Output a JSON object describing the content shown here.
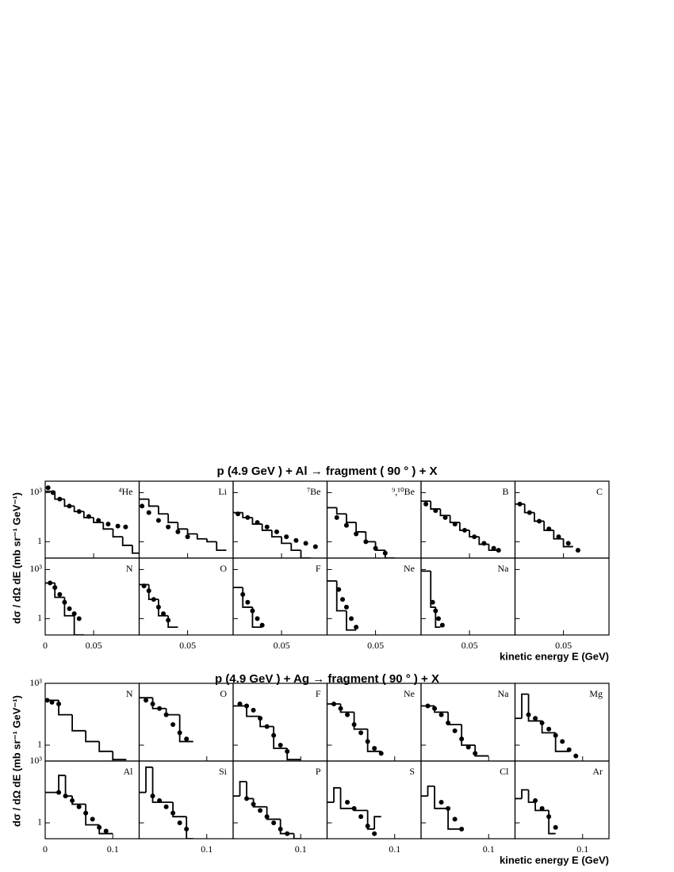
{
  "chart_data": [
    {
      "type": "scatter",
      "title": "p (4.9 GeV ) + Al → fragment ( 90 ° ) + X",
      "y_label": "dσ / dΩ dE (mb sr⁻¹ GeV⁻¹)",
      "x_label": "kinetic energy E (GeV)",
      "log_y": true,
      "color": "#000000",
      "xlim": [
        0,
        0.097
      ],
      "xticks": [
        0,
        0.05
      ],
      "ylim": [
        0.1,
        5000
      ],
      "yticks": [
        1,
        {
          "value": 1000,
          "label": "10³"
        }
      ],
      "panels": [
        {
          "label": "⁴He",
          "points": {
            "x": [
              0.003,
              0.008,
              0.015,
              0.025,
              0.035,
              0.045,
              0.055,
              0.065,
              0.075,
              0.083
            ],
            "y": [
              2000,
              1000,
              400,
              150,
              70,
              35,
              20,
              12,
              9,
              8
            ]
          },
          "histogram": {
            "bins": [
              0,
              0.01,
              0.02,
              0.03,
              0.04,
              0.05,
              0.06,
              0.07,
              0.08,
              0.09,
              0.097
            ],
            "values": [
              1200,
              400,
              150,
              70,
              30,
              15,
              6,
              2,
              0.6,
              0.2
            ]
          }
        },
        {
          "label": "Li",
          "points": {
            "x": [
              0.003,
              0.01,
              0.02,
              0.03,
              0.04,
              0.05
            ],
            "y": [
              150,
              60,
              20,
              8,
              4,
              2
            ]
          },
          "histogram": {
            "bins": [
              0,
              0.01,
              0.02,
              0.03,
              0.04,
              0.05,
              0.06,
              0.07,
              0.08,
              0.09
            ],
            "values": [
              400,
              150,
              50,
              15,
              6,
              3,
              1.5,
              1,
              0.3
            ]
          }
        },
        {
          "label": "⁷Be",
          "points": {
            "x": [
              0.005,
              0.015,
              0.025,
              0.035,
              0.045,
              0.055,
              0.065,
              0.075,
              0.085
            ],
            "y": [
              50,
              30,
              15,
              8,
              4,
              2,
              1.2,
              0.8,
              0.5
            ]
          },
          "histogram": {
            "bins": [
              0,
              0.01,
              0.02,
              0.03,
              0.04,
              0.05,
              0.06,
              0.07,
              0.08
            ],
            "values": [
              60,
              30,
              12,
              5,
              2,
              0.8,
              0.3,
              0.1
            ]
          }
        },
        {
          "label": "⁹,¹⁰Be",
          "points": {
            "x": [
              0.01,
              0.02,
              0.03,
              0.04,
              0.05,
              0.06
            ],
            "y": [
              30,
              10,
              3,
              1,
              0.4,
              0.2
            ]
          },
          "histogram": {
            "bins": [
              0,
              0.01,
              0.02,
              0.03,
              0.04,
              0.05,
              0.06,
              0.07
            ],
            "values": [
              120,
              50,
              15,
              4,
              1,
              0.3,
              0.1
            ]
          }
        },
        {
          "label": "B",
          "points": {
            "x": [
              0.005,
              0.015,
              0.025,
              0.035,
              0.045,
              0.055,
              0.065,
              0.075,
              0.08
            ],
            "y": [
              200,
              80,
              30,
              12,
              5,
              2,
              0.8,
              0.4,
              0.3
            ]
          },
          "histogram": {
            "bins": [
              0,
              0.01,
              0.02,
              0.03,
              0.04,
              0.05,
              0.06,
              0.07,
              0.08
            ],
            "values": [
              300,
              100,
              40,
              15,
              5,
              2,
              0.7,
              0.3
            ]
          }
        },
        {
          "label": "C",
          "points": {
            "x": [
              0.005,
              0.015,
              0.025,
              0.035,
              0.045,
              0.055,
              0.065
            ],
            "y": [
              200,
              60,
              18,
              6,
              2,
              0.8,
              0.3
            ]
          },
          "histogram": {
            "bins": [
              0,
              0.01,
              0.02,
              0.03,
              0.04,
              0.05,
              0.06
            ],
            "values": [
              200,
              60,
              18,
              5,
              1.5,
              0.5
            ]
          }
        },
        {
          "label": "N",
          "points": {
            "x": [
              0.005,
              0.01,
              0.015,
              0.02,
              0.025,
              0.03,
              0.035
            ],
            "y": [
              150,
              80,
              30,
              10,
              4,
              2,
              1
            ]
          },
          "histogram": {
            "bins": [
              0,
              0.01,
              0.02,
              0.03,
              0.04
            ],
            "values": [
              150,
              20,
              1.5,
              0.1
            ]
          }
        },
        {
          "label": "O",
          "points": {
            "x": [
              0.005,
              0.01,
              0.015,
              0.02,
              0.025,
              0.03
            ],
            "y": [
              100,
              50,
              15,
              5,
              2,
              0.8
            ]
          },
          "histogram": {
            "bins": [
              0,
              0.01,
              0.02,
              0.03,
              0.04
            ],
            "values": [
              120,
              15,
              1.5,
              0.3
            ]
          }
        },
        {
          "label": "F",
          "points": {
            "x": [
              0.01,
              0.015,
              0.02,
              0.025,
              0.03
            ],
            "y": [
              30,
              10,
              3,
              1,
              0.4
            ]
          },
          "histogram": {
            "bins": [
              0,
              0.01,
              0.02,
              0.03
            ],
            "values": [
              80,
              5,
              0.3
            ]
          }
        },
        {
          "label": "Ne",
          "points": {
            "x": [
              0.012,
              0.016,
              0.02,
              0.025,
              0.03
            ],
            "y": [
              60,
              15,
              5,
              1,
              0.3
            ]
          },
          "histogram": {
            "bins": [
              0,
              0.01,
              0.02,
              0.03
            ],
            "values": [
              200,
              3,
              0.2
            ]
          }
        },
        {
          "label": "Na",
          "points": {
            "x": [
              0.012,
              0.015,
              0.018,
              0.022
            ],
            "y": [
              10,
              3,
              1,
              0.4
            ]
          },
          "histogram": {
            "bins": [
              0,
              0.01,
              0.015,
              0.02
            ],
            "values": [
              800,
              5,
              0.3
            ]
          }
        }
      ]
    },
    {
      "type": "scatter",
      "title": "p (4.9 GeV ) + Ag → fragment ( 90 ° ) + X",
      "y_label": "dσ / dΩ dE (mb sr⁻¹ GeV⁻¹)",
      "x_label": "kinetic energy E (GeV)",
      "log_y": true,
      "color": "#000000",
      "xlim": [
        0,
        0.139
      ],
      "xticks": [
        0,
        0.1
      ],
      "ylim": [
        0.17,
        1000
      ],
      "yticks": [
        1,
        {
          "value": 1000,
          "label": "10³"
        }
      ],
      "panels": [
        {
          "label": "N",
          "points": {
            "x": [
              0.003,
              0.01,
              0.02
            ],
            "y": [
              150,
              120,
              100
            ]
          },
          "histogram": {
            "bins": [
              0,
              0.02,
              0.04,
              0.06,
              0.08,
              0.1,
              0.12
            ],
            "values": [
              150,
              30,
              5,
              1.5,
              0.5,
              0.2
            ]
          }
        },
        {
          "label": "O",
          "points": {
            "x": [
              0.01,
              0.02,
              0.03,
              0.04,
              0.05,
              0.06,
              0.07
            ],
            "y": [
              150,
              100,
              60,
              30,
              10,
              4,
              2
            ]
          },
          "histogram": {
            "bins": [
              0,
              0.02,
              0.04,
              0.06,
              0.08
            ],
            "values": [
              200,
              60,
              30,
              1.5
            ]
          }
        },
        {
          "label": "F",
          "points": {
            "x": [
              0.01,
              0.02,
              0.03,
              0.04,
              0.05,
              0.06,
              0.07,
              0.08
            ],
            "y": [
              100,
              80,
              50,
              20,
              8,
              3,
              1,
              0.5
            ]
          },
          "histogram": {
            "bins": [
              0,
              0.02,
              0.04,
              0.06,
              0.08,
              0.1
            ],
            "values": [
              80,
              25,
              8,
              0.7,
              0.2
            ]
          }
        },
        {
          "label": "Ne",
          "points": {
            "x": [
              0.01,
              0.02,
              0.03,
              0.04,
              0.05,
              0.06,
              0.07,
              0.08
            ],
            "y": [
              100,
              60,
              30,
              10,
              4,
              1.5,
              0.7,
              0.4
            ]
          },
          "histogram": {
            "bins": [
              0,
              0.02,
              0.04,
              0.06,
              0.08
            ],
            "values": [
              100,
              40,
              6,
              0.5
            ]
          }
        },
        {
          "label": "Na",
          "points": {
            "x": [
              0.01,
              0.02,
              0.03,
              0.04,
              0.05,
              0.06,
              0.07,
              0.08
            ],
            "y": [
              80,
              60,
              30,
              12,
              5,
              2,
              0.8,
              0.4
            ]
          },
          "histogram": {
            "bins": [
              0,
              0.02,
              0.04,
              0.06,
              0.08,
              0.1
            ],
            "values": [
              80,
              40,
              10,
              1,
              0.3
            ]
          }
        },
        {
          "label": "Mg",
          "points": {
            "x": [
              0.02,
              0.03,
              0.04,
              0.05,
              0.06,
              0.07,
              0.08,
              0.09
            ],
            "y": [
              30,
              20,
              12,
              6,
              3,
              1.5,
              0.6,
              0.3
            ]
          },
          "histogram": {
            "bins": [
              0,
              0.01,
              0.02,
              0.04,
              0.06,
              0.08
            ],
            "values": [
              20,
              300,
              15,
              4,
              0.5
            ]
          }
        },
        {
          "label": "Al",
          "points": {
            "x": [
              0.02,
              0.03,
              0.04,
              0.05,
              0.06,
              0.07,
              0.08,
              0.09
            ],
            "y": [
              30,
              20,
              12,
              6,
              3,
              1.5,
              0.6,
              0.4
            ]
          },
          "histogram": {
            "bins": [
              0,
              0.02,
              0.03,
              0.04,
              0.06,
              0.08,
              0.1
            ],
            "values": [
              30,
              200,
              20,
              8,
              0.8,
              0.3
            ]
          }
        },
        {
          "label": "Si",
          "points": {
            "x": [
              0.02,
              0.03,
              0.04,
              0.05,
              0.06,
              0.07
            ],
            "y": [
              20,
              12,
              6,
              3,
              1,
              0.5
            ]
          },
          "histogram": {
            "bins": [
              0,
              0.01,
              0.02,
              0.03,
              0.05,
              0.07,
              0.08
            ],
            "values": [
              30,
              500,
              10,
              10,
              2,
              0.17
            ]
          }
        },
        {
          "label": "P",
          "points": {
            "x": [
              0.02,
              0.03,
              0.04,
              0.05,
              0.06,
              0.07,
              0.08
            ],
            "y": [
              15,
              8,
              4,
              2,
              1,
              0.5,
              0.3
            ]
          },
          "histogram": {
            "bins": [
              0,
              0.01,
              0.02,
              0.03,
              0.05,
              0.07,
              0.09,
              0.1
            ],
            "values": [
              20,
              100,
              15,
              6,
              1.5,
              0.3,
              0.17
            ]
          }
        },
        {
          "label": "S",
          "points": {
            "x": [
              0.03,
              0.04,
              0.05,
              0.06,
              0.07
            ],
            "y": [
              10,
              5,
              2,
              0.7,
              0.3
            ]
          },
          "histogram": {
            "bins": [
              0,
              0.01,
              0.02,
              0.04,
              0.06,
              0.07,
              0.08
            ],
            "values": [
              10,
              50,
              5,
              4,
              0.5,
              2
            ]
          }
        },
        {
          "label": "Cl",
          "points": {
            "x": [
              0.03,
              0.04,
              0.05,
              0.06
            ],
            "y": [
              10,
              5,
              1.5,
              0.5
            ]
          },
          "histogram": {
            "bins": [
              0,
              0.01,
              0.02,
              0.04,
              0.06
            ],
            "values": [
              20,
              60,
              5,
              0.5
            ]
          }
        },
        {
          "label": "Ar",
          "points": {
            "x": [
              0.03,
              0.04,
              0.05,
              0.06
            ],
            "y": [
              12,
              5,
              2,
              0.6
            ]
          },
          "histogram": {
            "bins": [
              0,
              0.01,
              0.02,
              0.03,
              0.05,
              0.06
            ],
            "values": [
              15,
              40,
              10,
              4,
              0.3
            ]
          }
        }
      ]
    }
  ]
}
